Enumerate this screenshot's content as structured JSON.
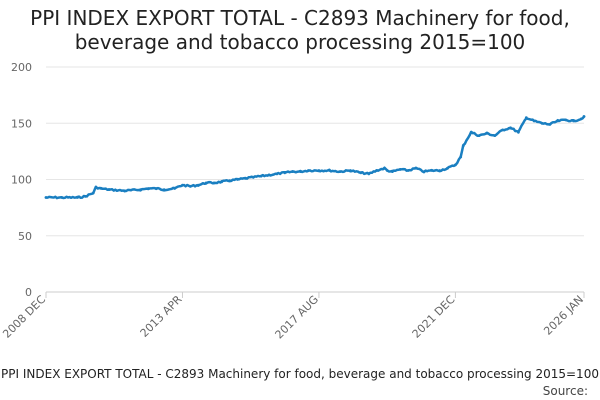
{
  "chart_data": {
    "type": "line",
    "title_lines": [
      "PPI INDEX EXPORT TOTAL - C2893 Machinery for food,",
      "beverage and tobacco processing 2015=100"
    ],
    "footer_caption": "PPI INDEX EXPORT TOTAL - C2893 Machinery for food, beverage and tobacco processing 2015=100",
    "source_label": "Source:",
    "ylim": [
      0,
      200
    ],
    "y_ticks": [
      0,
      50,
      100,
      150,
      200
    ],
    "x_range": [
      "2008-12",
      "2026-01"
    ],
    "x_tick_labels": [
      {
        "label": "2008 DEC",
        "date": "2008-12"
      },
      {
        "label": "2013 APR",
        "date": "2013-04"
      },
      {
        "label": "2017 AUG",
        "date": "2017-08"
      },
      {
        "label": "2021 DEC",
        "date": "2021-12"
      },
      {
        "label": "2026 JAN",
        "date": "2026-01"
      }
    ],
    "colors": {
      "line": "#1a7fc1",
      "grid": "#e6e6e6",
      "axis": "#cccccc"
    },
    "series": [
      {
        "name": "PPI INDEX EXPORT TOTAL - C2893 Machinery for food, beverage and tobacco processing 2015=100",
        "x": [
          "2008-12",
          "2009-06",
          "2009-12",
          "2010-03",
          "2010-06",
          "2010-07",
          "2010-09",
          "2010-12",
          "2011-06",
          "2011-12",
          "2012-03",
          "2012-06",
          "2012-09",
          "2013-01",
          "2013-04",
          "2013-07",
          "2013-10",
          "2014-01",
          "2014-04",
          "2014-07",
          "2014-10",
          "2015-01",
          "2015-04",
          "2015-07",
          "2015-10",
          "2016-01",
          "2016-04",
          "2016-07",
          "2016-10",
          "2017-01",
          "2017-04",
          "2017-08",
          "2017-12",
          "2018-04",
          "2018-08",
          "2018-12",
          "2019-03",
          "2019-06",
          "2019-09",
          "2019-10",
          "2019-12",
          "2020-03",
          "2020-06",
          "2020-09",
          "2020-12",
          "2021-03",
          "2021-06",
          "2021-09",
          "2021-12",
          "2022-02",
          "2022-03",
          "2022-06",
          "2022-09",
          "2022-12",
          "2023-03",
          "2023-06",
          "2023-09",
          "2023-12",
          "2024-03",
          "2024-06",
          "2024-09",
          "2024-12",
          "2025-03",
          "2025-06",
          "2025-09",
          "2025-12",
          "2026-01"
        ],
        "values": [
          84,
          84,
          84,
          85,
          88,
          93,
          92,
          91,
          90,
          91,
          92,
          92,
          91,
          92,
          95,
          94,
          95,
          97,
          97,
          98,
          99,
          100,
          101,
          102,
          103,
          104,
          105,
          106,
          107,
          107,
          108,
          108,
          108,
          107,
          108,
          106,
          105,
          108,
          110,
          108,
          107,
          109,
          108,
          110,
          107,
          108,
          108,
          110,
          113,
          120,
          130,
          142,
          139,
          141,
          139,
          144,
          146,
          142,
          155,
          152,
          150,
          149,
          152,
          153,
          152,
          154,
          156
        ]
      }
    ]
  }
}
